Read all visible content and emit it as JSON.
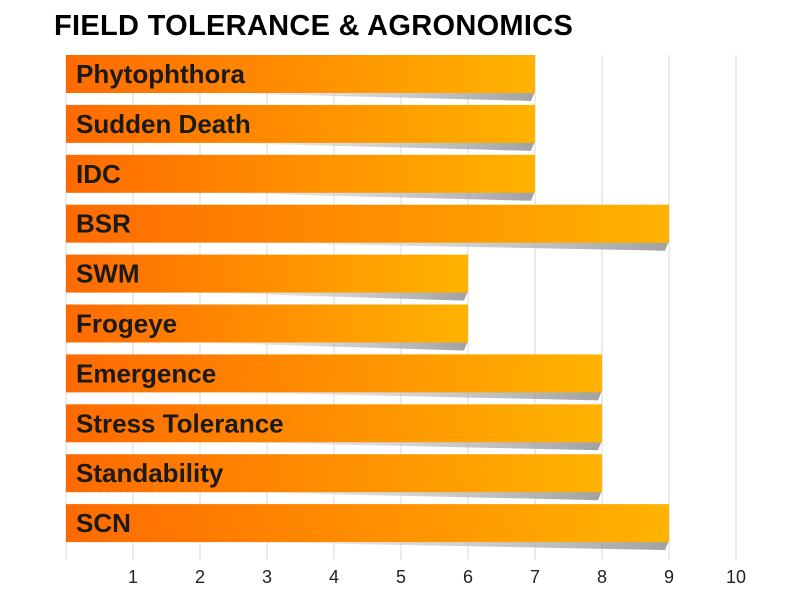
{
  "chart_data": {
    "type": "bar",
    "orientation": "horizontal",
    "title": "FIELD TOLERANCE & AGRONOMICS",
    "categories": [
      "Phytophthora",
      "Sudden Death",
      "IDC",
      "BSR",
      "SWM",
      "Frogeye",
      "Emergence",
      "Stress Tolerance",
      "Standability",
      "SCN"
    ],
    "values": [
      7,
      7,
      7,
      9,
      6,
      6,
      8,
      8,
      8,
      9
    ],
    "xlim": [
      0,
      10
    ],
    "xticks": [
      1,
      2,
      3,
      4,
      5,
      6,
      7,
      8,
      9,
      10
    ],
    "grid": true,
    "legend": "none",
    "colors": {
      "bar_start": "#ff6a00",
      "bar_end": "#ffb300",
      "grid": "#d9d9d9"
    }
  }
}
